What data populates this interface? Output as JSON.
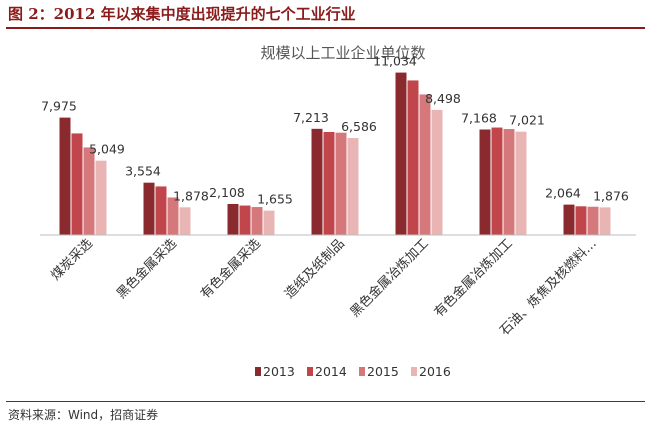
{
  "figure_title": "图 2：2012 年以来集中度出现提升的七个工业行业",
  "source": "资料来源：Wind，招商证券",
  "chart_data": {
    "type": "bar",
    "title": "规模以上工业企业单位数",
    "xlabel": "",
    "ylabel": "",
    "ylim": [
      0,
      12500
    ],
    "grid": false,
    "legend": "bottom",
    "categories": [
      "煤炭采选",
      "黑色金属采选",
      "有色金属采选",
      "造纸及纸制品",
      "黑色金属冶炼加工",
      "有色金属冶炼加工",
      "石油、炼焦及核燃料…"
    ],
    "series": [
      {
        "name": "2013",
        "color": "#8b2a2e",
        "values": [
          7975,
          3554,
          2108,
          7213,
          11034,
          7168,
          2064
        ]
      },
      {
        "name": "2014",
        "color": "#c0464c",
        "values": [
          6900,
          3300,
          2000,
          7000,
          10500,
          7300,
          1950
        ]
      },
      {
        "name": "2015",
        "color": "#d5787c",
        "values": [
          5950,
          2550,
          1900,
          6950,
          9550,
          7200,
          1920
        ]
      },
      {
        "name": "2016",
        "color": "#e8b4b4",
        "values": [
          5049,
          1878,
          1655,
          6586,
          8498,
          7021,
          1876
        ]
      }
    ],
    "data_labels": [
      {
        "category": 0,
        "series": 0,
        "text": "7,975"
      },
      {
        "category": 0,
        "series": 3,
        "text": "5,049"
      },
      {
        "category": 1,
        "series": 0,
        "text": "3,554"
      },
      {
        "category": 1,
        "series": 3,
        "text": "1,878"
      },
      {
        "category": 2,
        "series": 0,
        "text": "2,108"
      },
      {
        "category": 2,
        "series": 3,
        "text": "1,655"
      },
      {
        "category": 3,
        "series": 0,
        "text": "7,213"
      },
      {
        "category": 3,
        "series": 3,
        "text": "6,586"
      },
      {
        "category": 4,
        "series": 0,
        "text": "11,034"
      },
      {
        "category": 4,
        "series": 3,
        "text": "8,498"
      },
      {
        "category": 5,
        "series": 0,
        "text": "7,168"
      },
      {
        "category": 5,
        "series": 3,
        "text": "7,021"
      },
      {
        "category": 6,
        "series": 0,
        "text": "2,064"
      },
      {
        "category": 6,
        "series": 3,
        "text": "1,876"
      }
    ]
  }
}
